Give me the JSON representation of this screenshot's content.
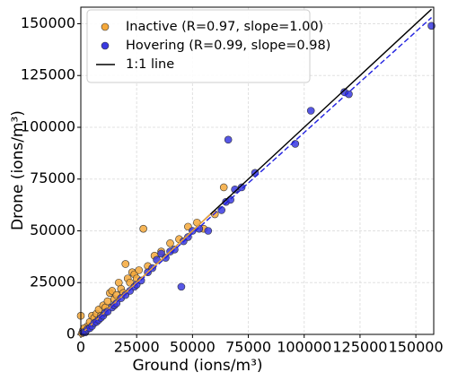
{
  "chart_data": {
    "type": "scatter",
    "xlabel": "Ground (ions/m³)",
    "ylabel": "Drone (ions/m³)",
    "xlim": [
      0,
      158000
    ],
    "ylim": [
      0,
      158000
    ],
    "xticks": [
      0,
      25000,
      50000,
      75000,
      100000,
      125000,
      150000
    ],
    "yticks": [
      0,
      25000,
      50000,
      75000,
      100000,
      125000,
      150000
    ],
    "grid": true,
    "legend": "upper-left",
    "series": [
      {
        "name": "Inactive (R=0.97, slope=1.00)",
        "color": "#f5a83a",
        "x": [
          1000,
          2000,
          3000,
          4000,
          5000,
          6000,
          7000,
          8000,
          9000,
          10000,
          11000,
          12000,
          13000,
          14000,
          15000,
          16000,
          17000,
          18000,
          19000,
          20000,
          21000,
          22000,
          23000,
          24000,
          25000,
          26000,
          28000,
          30000,
          33000,
          36000,
          40000,
          44000,
          48000,
          52000,
          55000,
          60000,
          64000,
          0,
          500,
          1500
        ],
        "y": [
          2000,
          1500,
          4000,
          6000,
          9000,
          8000,
          10000,
          12000,
          9000,
          14000,
          13000,
          16000,
          20000,
          21000,
          17000,
          19000,
          25000,
          22000,
          20000,
          34000,
          27000,
          25000,
          30000,
          29000,
          27000,
          31000,
          51000,
          33000,
          38000,
          40000,
          44000,
          46000,
          52000,
          54000,
          51000,
          58000,
          71000,
          9000,
          500,
          3000
        ]
      },
      {
        "name": "Hovering (R=0.99, slope=0.98)",
        "color": "#3a3ae0",
        "x": [
          1000,
          2000,
          3000,
          4000,
          5000,
          6000,
          7000,
          8000,
          9000,
          10000,
          11000,
          12000,
          14000,
          15000,
          16000,
          18000,
          20000,
          22000,
          24000,
          25000,
          27000,
          30000,
          32000,
          34000,
          36000,
          38000,
          40000,
          42000,
          45000,
          46000,
          48000,
          50000,
          53000,
          57000,
          63000,
          65000,
          66000,
          67000,
          69000,
          72000,
          78000,
          96000,
          103000,
          118000,
          120000,
          157000
        ],
        "y": [
          1000,
          1000,
          2500,
          3000,
          4000,
          5500,
          6000,
          7000,
          8000,
          9000,
          10500,
          11000,
          13000,
          14000,
          15000,
          17500,
          19000,
          21000,
          23000,
          24000,
          26000,
          30000,
          32000,
          36000,
          39000,
          37000,
          40000,
          41000,
          23000,
          45000,
          47000,
          50000,
          51000,
          50000,
          60000,
          64000,
          94000,
          65000,
          70000,
          71000,
          78000,
          92000,
          108000,
          117000,
          116000,
          149000
        ]
      }
    ],
    "lines": [
      {
        "name": "1:1 line",
        "color": "#000000",
        "style": "solid",
        "x": [
          0,
          157000
        ],
        "y": [
          0,
          157000
        ]
      },
      {
        "color": "#f5a83a",
        "style": "solid",
        "x": [
          0,
          58000
        ],
        "y": [
          0,
          58000
        ]
      },
      {
        "color": "#2020e0",
        "style": "dashed",
        "x": [
          0,
          157000
        ],
        "y": [
          0,
          153000
        ]
      }
    ]
  }
}
